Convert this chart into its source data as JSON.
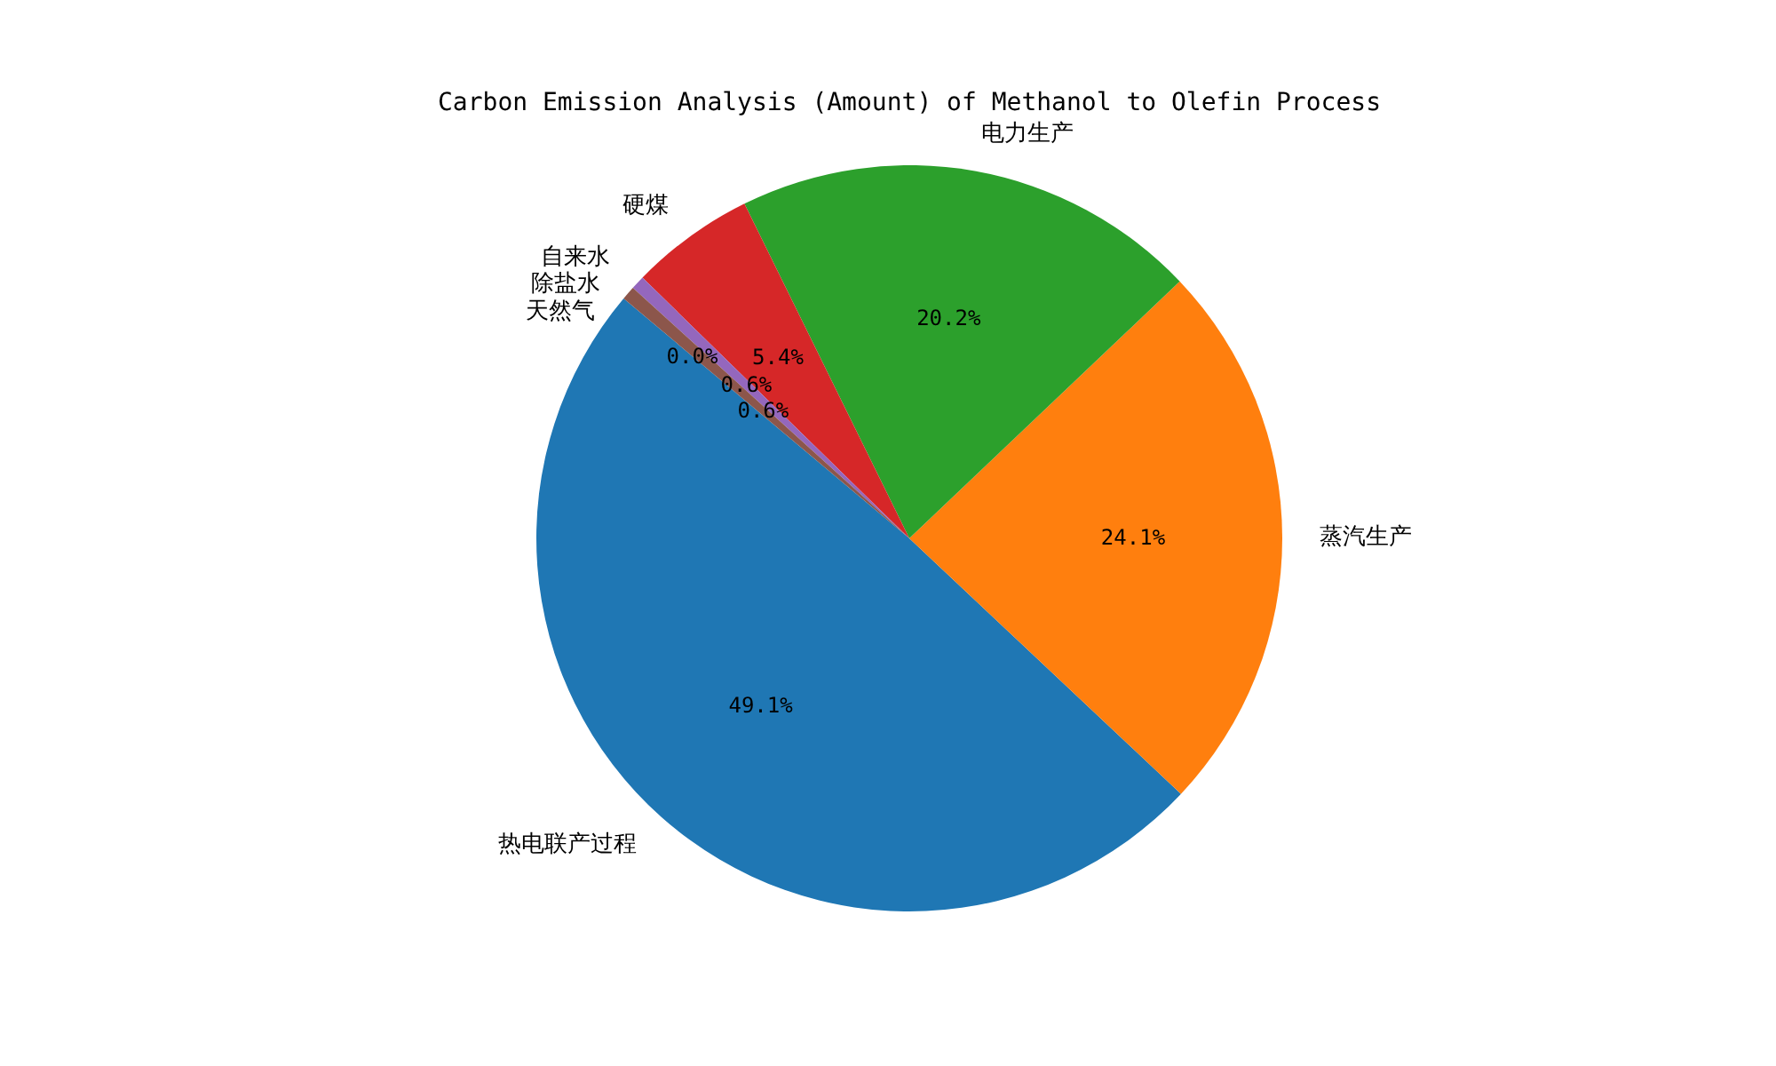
{
  "chart_data": {
    "type": "pie",
    "title": "Carbon Emission Analysis (Amount) of Methanol to Olefin Process",
    "categories": [
      "热电联产过程",
      "蒸汽生产",
      "电力生产",
      "硬煤",
      "自来水",
      "除盐水",
      "天然气"
    ],
    "values": [
      49.1,
      24.1,
      20.2,
      5.4,
      0.6,
      0.6,
      0.0
    ],
    "colors": [
      "#1f77b4",
      "#ff7f0e",
      "#2ca02c",
      "#d62728",
      "#9467bd",
      "#8c564b",
      "#e377c2"
    ],
    "value_labels": [
      "49.1%",
      "24.1%",
      "20.2%",
      "5.4%",
      "0.6%",
      "0.6%",
      "0.0%"
    ]
  }
}
